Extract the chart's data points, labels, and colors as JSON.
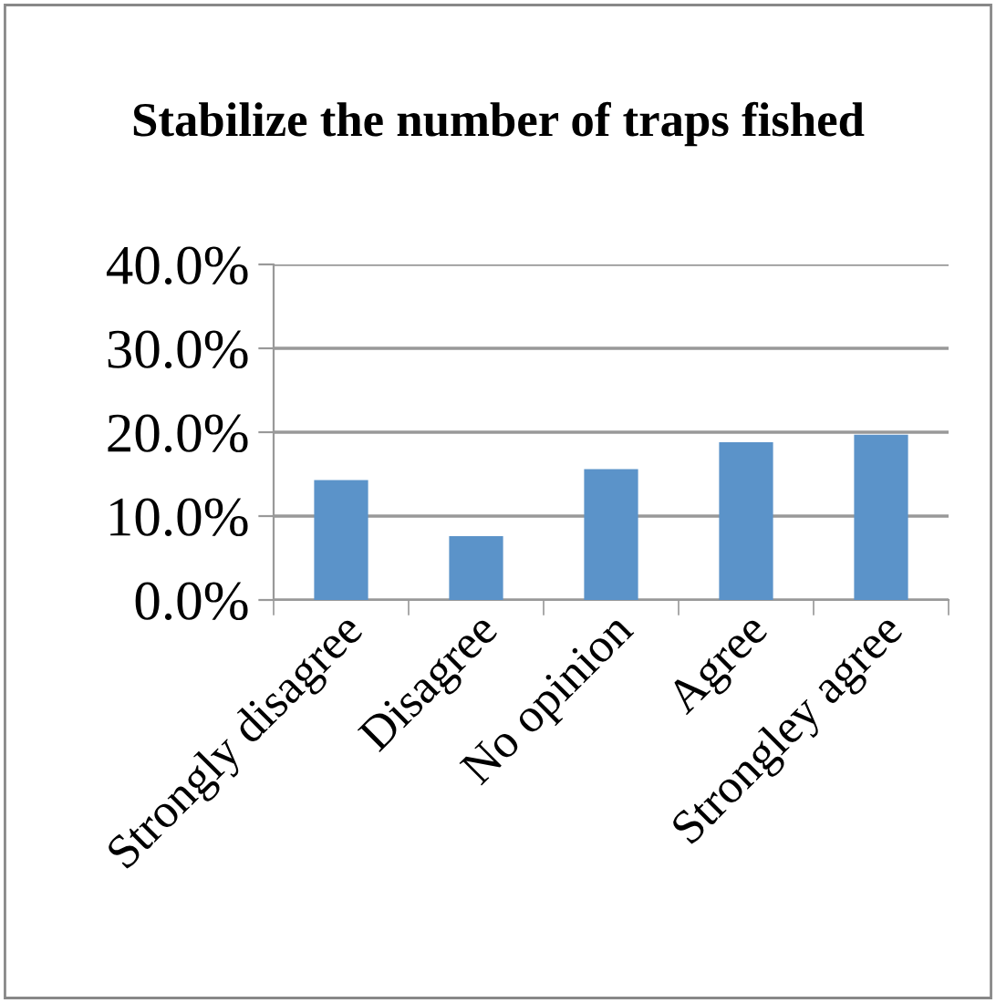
{
  "chart_data": {
    "type": "bar",
    "title": "Stabilize the number of traps fished",
    "categories": [
      "Strongly disagree",
      "Disagree",
      "No opinion",
      "Agree",
      "Strongley agree"
    ],
    "values": [
      14.3,
      7.6,
      15.6,
      18.8,
      19.7
    ],
    "color": "#5b93c9",
    "ylim": [
      0,
      40
    ],
    "yticks": [
      {
        "value": 0,
        "label": "0.0%"
      },
      {
        "value": 10,
        "label": "10.0%"
      },
      {
        "value": 20,
        "label": "20.0%"
      },
      {
        "value": 30,
        "label": "30.0%"
      },
      {
        "value": 40,
        "label": "40.0%"
      }
    ],
    "grid": "y"
  }
}
